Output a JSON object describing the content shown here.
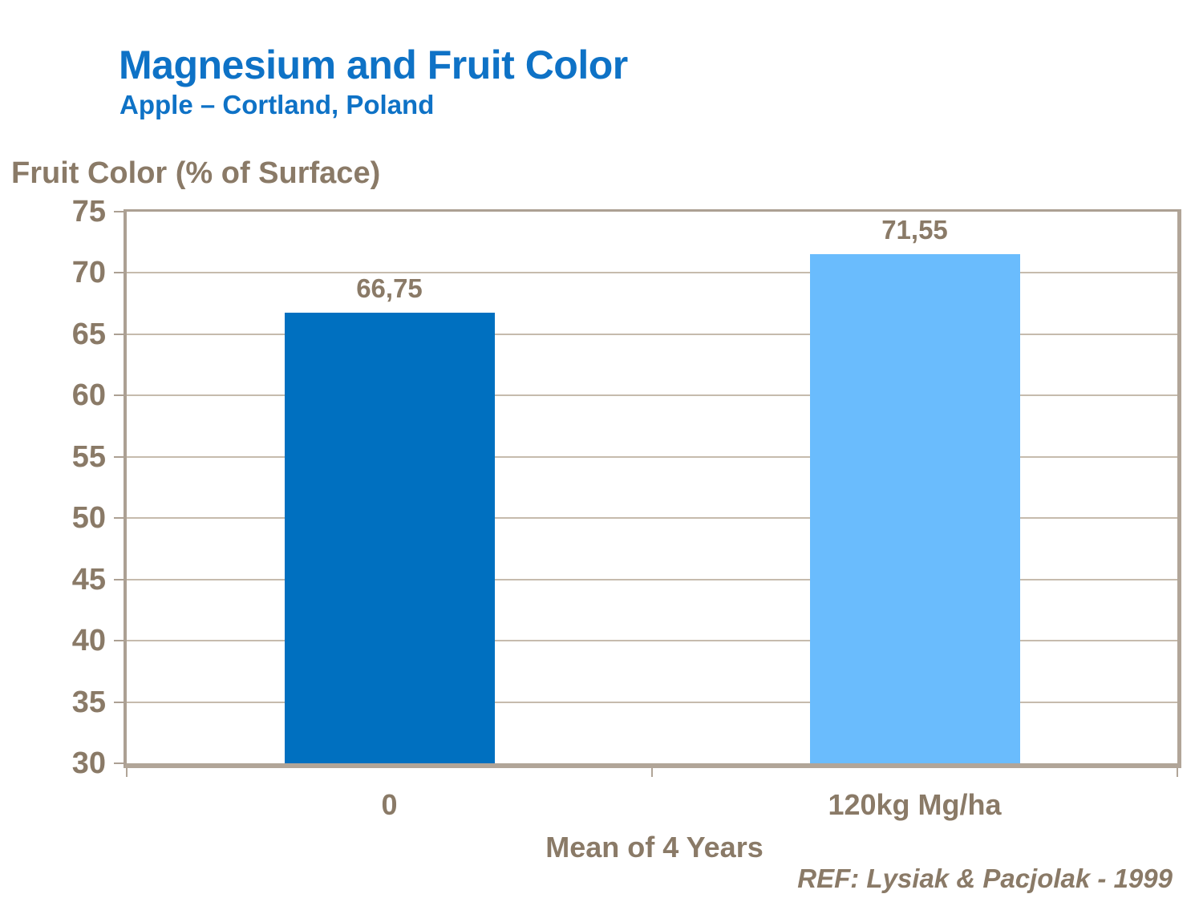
{
  "slide": {
    "title": "Magnesium and Fruit Color",
    "subtitle": "Apple – Cortland, Poland",
    "reference": "REF: Lysiak & Pacjolak - 1999"
  },
  "chart_data": {
    "type": "bar",
    "title": "Magnesium and Fruit Color",
    "subtitle": "Apple – Cortland, Poland",
    "ylabel": "Fruit Color (% of Surface)",
    "xlabel": "Mean of 4 Years",
    "categories": [
      "0",
      "120kg Mg/ha"
    ],
    "values": [
      66.75,
      71.55
    ],
    "value_labels": [
      "66,75",
      "71,55"
    ],
    "ylim": [
      30,
      75
    ],
    "ytick_step": 5,
    "yticks": [
      30,
      35,
      40,
      45,
      50,
      55,
      60,
      65,
      70,
      75
    ],
    "grid": true,
    "legend": false,
    "bar_colors": [
      "#0070C0",
      "#6ABCFD"
    ]
  },
  "colors": {
    "heading_blue": "#0E72C6",
    "text_brown": "#8A7A67",
    "plot_border": "#ACA093",
    "plot_border_dark": "#B1A598",
    "gridline": "#C6BBAD",
    "background": "#FFFFFF"
  }
}
